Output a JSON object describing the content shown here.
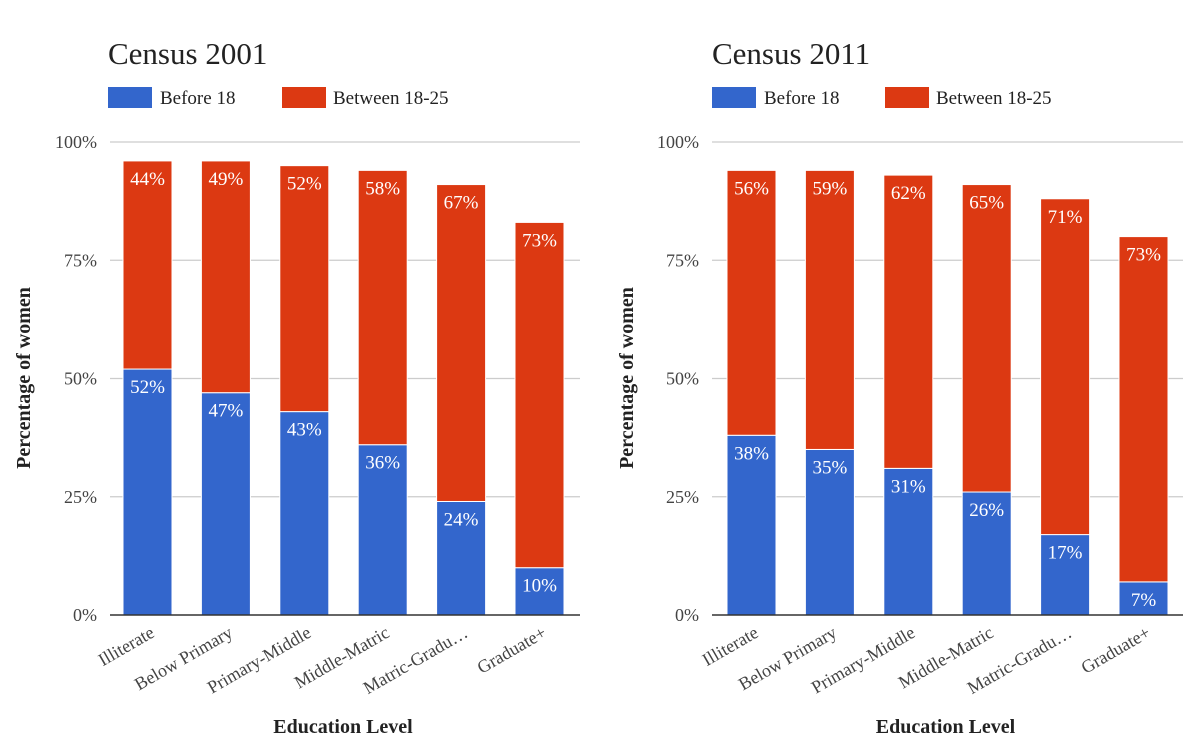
{
  "colors": {
    "before": "#3366cc",
    "between": "#dc3912",
    "grid": "#cccccc",
    "baseline": "#333333",
    "label_inside": "#ffffff",
    "text": "#222222",
    "tick_text": "#444444"
  },
  "chart_data": [
    {
      "type": "bar",
      "stacked": true,
      "title": "Census 2001",
      "xlabel": "Education Level",
      "ylabel": "Percentage of women",
      "ylim": [
        0,
        100
      ],
      "yticks": [
        "0%",
        "25%",
        "50%",
        "75%",
        "100%"
      ],
      "categories": [
        "Illiterate",
        "Below Primary",
        "Primary-Middle",
        "Middle-Matric",
        "Matric-Gradu…",
        "Graduate+"
      ],
      "series": [
        {
          "name": "Before 18",
          "color": "#3366cc",
          "values": [
            52,
            47,
            43,
            36,
            24,
            10
          ],
          "labels": [
            "52%",
            "47%",
            "43%",
            "36%",
            "24%",
            "10%"
          ]
        },
        {
          "name": "Between 18-25",
          "color": "#dc3912",
          "values": [
            44,
            49,
            52,
            58,
            67,
            73
          ],
          "labels": [
            "44%",
            "49%",
            "52%",
            "58%",
            "67%",
            "73%"
          ]
        }
      ]
    },
    {
      "type": "bar",
      "stacked": true,
      "title": "Census 2011",
      "xlabel": "Education Level",
      "ylabel": "Percentage of women",
      "ylim": [
        0,
        100
      ],
      "yticks": [
        "0%",
        "25%",
        "50%",
        "75%",
        "100%"
      ],
      "categories": [
        "Illiterate",
        "Below Primary",
        "Primary-Middle",
        "Middle-Matric",
        "Matric-Gradu…",
        "Graduate+"
      ],
      "series": [
        {
          "name": "Before 18",
          "color": "#3366cc",
          "values": [
            38,
            35,
            31,
            26,
            17,
            7
          ],
          "labels": [
            "38%",
            "35%",
            "31%",
            "26%",
            "17%",
            "7%"
          ]
        },
        {
          "name": "Between 18-25",
          "color": "#dc3912",
          "values": [
            56,
            59,
            62,
            65,
            71,
            73
          ],
          "labels": [
            "56%",
            "59%",
            "62%",
            "65%",
            "71%",
            "73%"
          ]
        }
      ]
    }
  ]
}
